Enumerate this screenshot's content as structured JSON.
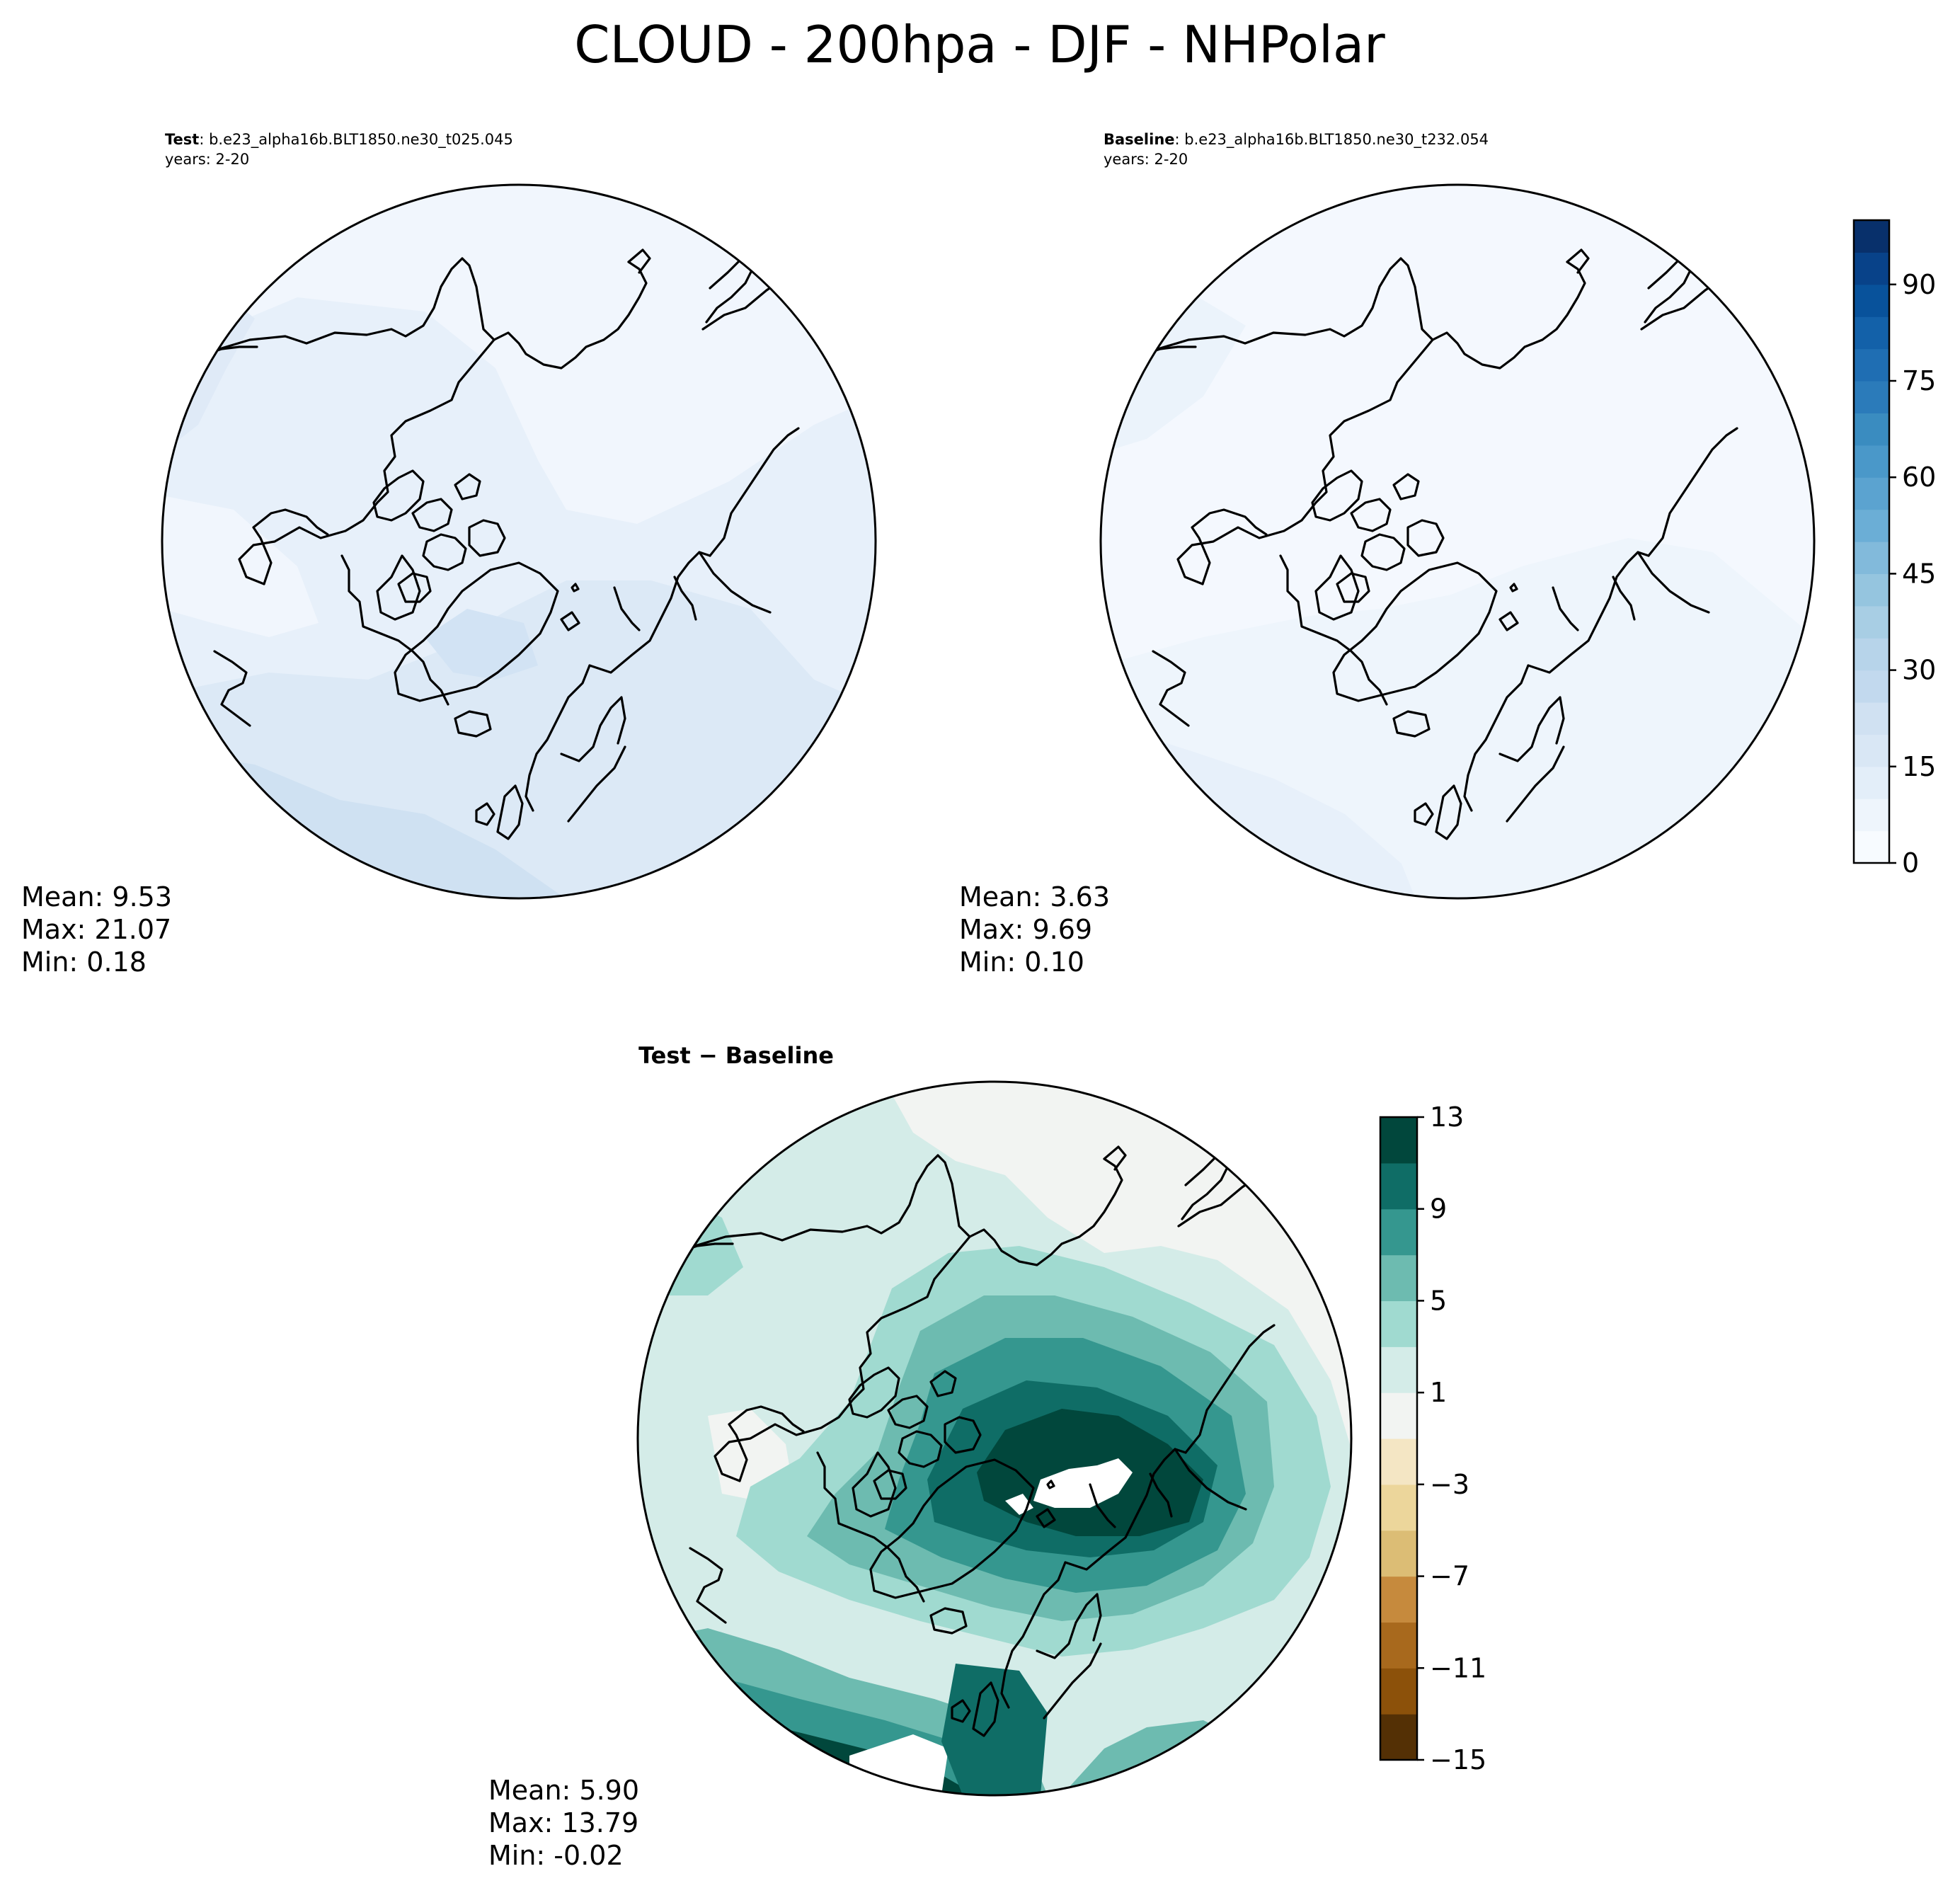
{
  "figure": {
    "title": "CLOUD - 200hpa - DJF - NHPolar"
  },
  "panels": {
    "test": {
      "label_bold": "Test",
      "label_rest": ": b.e23_alpha16b.BLT1850.ne30_t025.045",
      "years": "years: 2-20",
      "stats": [
        "Mean:  9.53",
        "Max: 21.07",
        "Min:  0.18"
      ]
    },
    "baseline": {
      "label_bold": "Baseline",
      "label_rest": ": b.e23_alpha16b.BLT1850.ne30_t232.054",
      "years": "years: 2-20",
      "stats": [
        "Mean:  3.63",
        "Max:  9.69",
        "Min:  0.10"
      ]
    },
    "diff": {
      "title": "Test − Baseline",
      "stats": [
        "Mean:  5.90",
        "Max: 13.79",
        "Min: -0.02"
      ]
    }
  },
  "colorbars": {
    "main": {
      "ticks": [
        "0",
        "15",
        "30",
        "45",
        "60",
        "75",
        "90"
      ],
      "tick_values": [
        0,
        15,
        30,
        45,
        60,
        75,
        90
      ],
      "range": [
        0,
        100
      ],
      "colors": [
        "#f7fbff",
        "#eef5fc",
        "#e3eef9",
        "#d9e7f5",
        "#d0e1f2",
        "#c2d9ee",
        "#b7d4ea",
        "#a8cee4",
        "#95c5df",
        "#82badb",
        "#6baed6",
        "#5ba3d0",
        "#4a98c9",
        "#3a8cc0",
        "#2b7bba",
        "#1f6eb3",
        "#1361a9",
        "#08529b",
        "#084289",
        "#08306b"
      ]
    },
    "diff": {
      "ticks": [
        "13",
        "9",
        "5",
        "1",
        "−3",
        "−7",
        "−11",
        "−15"
      ],
      "tick_values": [
        13,
        9,
        5,
        1,
        -3,
        -7,
        -11,
        -15
      ],
      "range": [
        -15,
        13
      ],
      "colors": [
        "#543005",
        "#8c510a",
        "#a8691d",
        "#c68a3d",
        "#dcbd75",
        "#ecd69b",
        "#f4e6c4",
        "#f2f4f2",
        "#d4ece8",
        "#a0dad0",
        "#6dbbb0",
        "#35978f",
        "#0f6d66",
        "#01473c"
      ]
    }
  },
  "map_colors": {
    "test": [
      "#e7f0fa",
      "#dce9f6",
      "#cfe1f2",
      "#c1d7ee",
      "#f1f6fd"
    ],
    "baseline": [
      "#eef5fc",
      "#e7f0fa",
      "#f4f8fe"
    ],
    "diff": [
      "#f2f4f2",
      "#d4ece8",
      "#a0dad0",
      "#6dbbb0",
      "#35978f",
      "#0f6d66",
      "#01473c",
      "#ffffff"
    ]
  }
}
